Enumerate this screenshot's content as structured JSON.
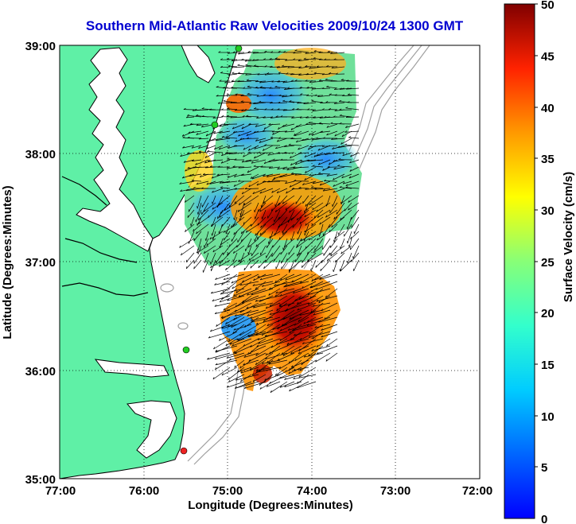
{
  "title": "Southern Mid-Atlantic Raw Velocities 2009/10/24 1300 GMT",
  "xlabel": "Longitude (Degrees:Minutes)",
  "ylabel": "Latitude (Degrees:Minutes)",
  "x_ticks": [
    "77:00",
    "76:00",
    "75:00",
    "74:00",
    "73:00",
    "72:00"
  ],
  "y_ticks": [
    "39:00",
    "38:00",
    "37:00",
    "36:00",
    "35:00"
  ],
  "colorbar": {
    "label": "Surface Velocity (cm/s)",
    "ticks": [
      "0",
      "5",
      "10",
      "15",
      "20",
      "25",
      "30",
      "35",
      "40",
      "45",
      "50"
    ],
    "range": [
      0,
      50
    ]
  },
  "colors": {
    "title": "#0000d0",
    "land": "#5ff0a6",
    "water_outline": "#000000",
    "bathymetry": "#a0a0a0",
    "grid": "#000000",
    "station_green": "#22cc22",
    "station_red": "#ee2222"
  },
  "map": {
    "lon_range": [
      -77,
      -72
    ],
    "lat_range": [
      35,
      39
    ],
    "stations": [
      {
        "type": "green",
        "lon": -75.12,
        "lat": 38.95
      },
      {
        "type": "green",
        "lon": -75.42,
        "lat": 37.92
      },
      {
        "type": "green",
        "lon": -75.65,
        "lat": 36.2
      },
      {
        "type": "red",
        "lon": -75.5,
        "lat": 35.25
      }
    ]
  }
}
